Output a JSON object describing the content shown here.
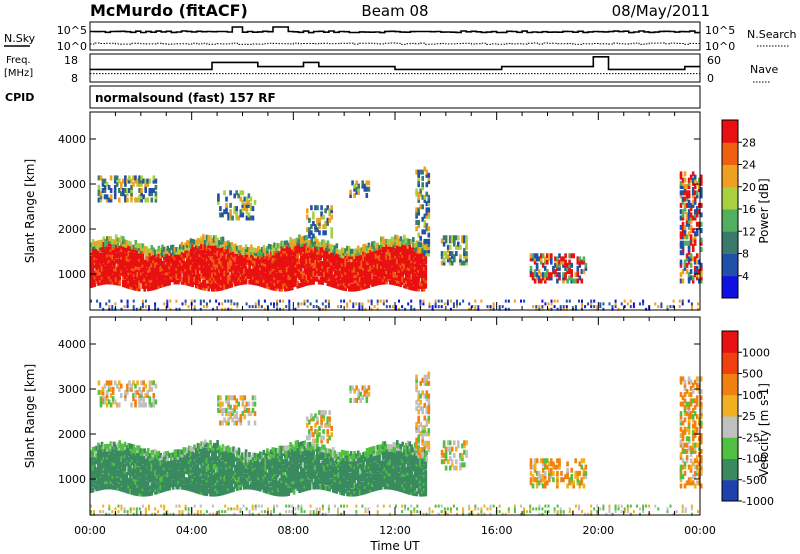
{
  "header": {
    "station": "McMurdo (fitACF)",
    "beam": "Beam 08",
    "date": "08/May/2011"
  },
  "top_panels": {
    "nsky_label": "N.Sky",
    "nsky_ticks": [
      "10^5",
      "10^0"
    ],
    "nsearch_label": "N.Search",
    "nsearch_ticks": [
      "10^5",
      "10^0"
    ],
    "freq_label_1": "Freq.",
    "freq_label_2": "[MHz]",
    "freq_ticks": [
      "18",
      "8"
    ],
    "nave_label": "Nave",
    "nave_ticks": [
      "60",
      "0"
    ],
    "cpid_label": "CPID",
    "cpid_value": "normalsound (fast) 157 RF"
  },
  "chart_data": [
    {
      "type": "heatmap",
      "name": "power",
      "ylabel": "Slant Range [km]",
      "xlabel": "",
      "y_ticks": [
        "1000",
        "2000",
        "3000",
        "4000"
      ],
      "ylim": [
        200,
        4600
      ],
      "xlim_hours": [
        0,
        24
      ],
      "colorbar_label": "Power [dB]",
      "colorbar_ticks": [
        "28",
        "24",
        "20",
        "16",
        "12",
        "8",
        "4"
      ],
      "colorbar_colors": [
        "#1010e0",
        "#2050a8",
        "#3a7a6a",
        "#50b060",
        "#a8d040",
        "#f0a020",
        "#f06010",
        "#e81010"
      ]
    },
    {
      "type": "heatmap",
      "name": "velocity",
      "ylabel": "Slant Range [km]",
      "xlabel": "Time UT",
      "y_ticks": [
        "1000",
        "2000",
        "3000",
        "4000"
      ],
      "ylim": [
        200,
        4600
      ],
      "xlim_hours": [
        0,
        24
      ],
      "x_ticks": [
        "00:00",
        "04:00",
        "08:00",
        "12:00",
        "16:00",
        "20:00",
        "00:00"
      ],
      "colorbar_label": "Velocity [m s-1]",
      "colorbar_ticks": [
        "1000",
        "500",
        "100",
        "25",
        "-25",
        "-100",
        "-500",
        "-1000"
      ],
      "colorbar_colors": [
        "#2040b0",
        "#3a8a60",
        "#50c040",
        "#c0c0c0",
        "#f0b020",
        "#f08010",
        "#f04010",
        "#e81010"
      ]
    }
  ],
  "colors": {
    "red": "#e81010",
    "orange": "#f08020",
    "green": "#4a9a5a",
    "blue": "#2050a8",
    "gray": "#c0c0c0"
  }
}
